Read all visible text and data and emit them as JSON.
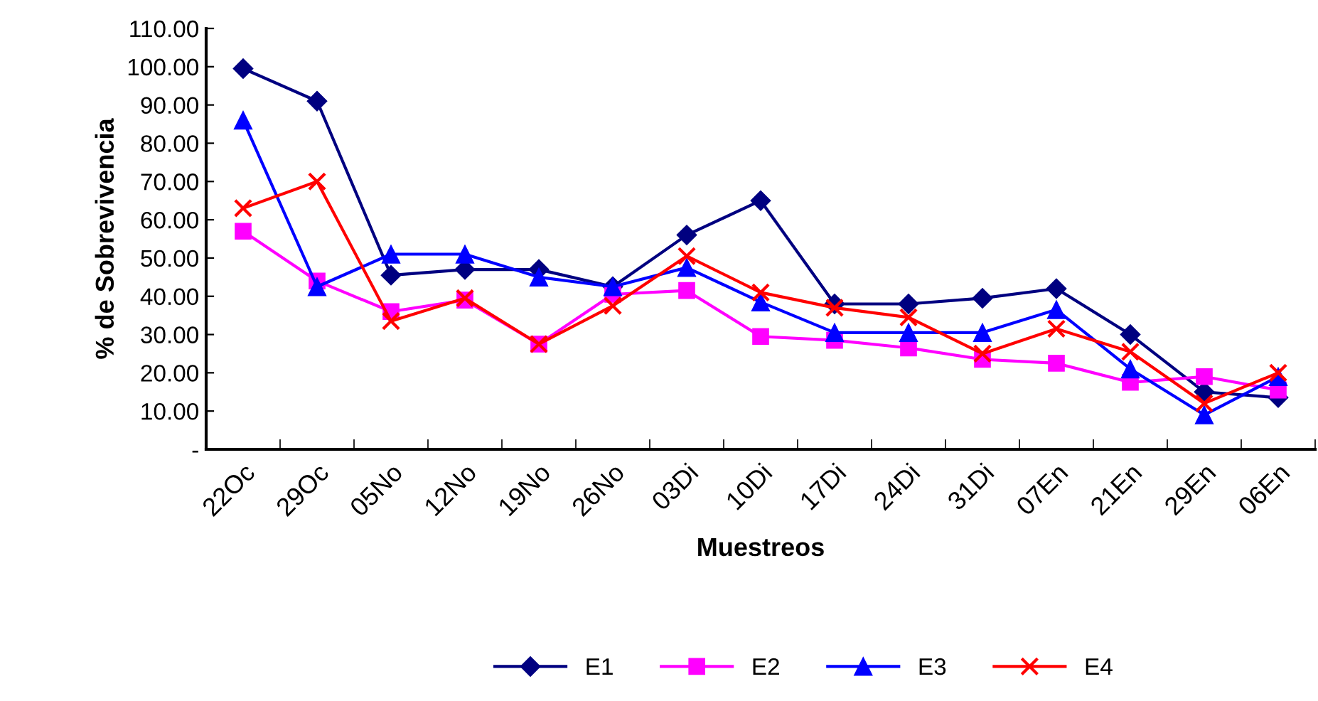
{
  "chart_data": {
    "type": "line",
    "xlabel": "Muestreos",
    "ylabel": "% de Sobrevivencia",
    "categories": [
      "22Oc",
      "29Oc",
      "05No",
      "12No",
      "19No",
      "26No",
      "03Di",
      "10Di",
      "17Di",
      "24Di",
      "31Di",
      "07En",
      "21En",
      "29En",
      "06En"
    ],
    "series": [
      {
        "name": "E1",
        "color": "#000080",
        "marker": "diamond",
        "values": [
          99.5,
          91,
          45.5,
          47,
          47,
          42.5,
          56,
          65,
          38,
          38,
          39.5,
          42,
          30,
          15,
          13.5
        ]
      },
      {
        "name": "E2",
        "color": "#ff00ff",
        "marker": "square",
        "values": [
          57,
          44,
          36,
          39,
          27.5,
          40.5,
          41.5,
          29.5,
          28.5,
          26.5,
          23.5,
          22.5,
          17.5,
          19,
          15.5
        ]
      },
      {
        "name": "E3",
        "color": "#0000ff",
        "marker": "triangle",
        "values": [
          86,
          42.5,
          51,
          51,
          45,
          42.5,
          47.5,
          38.5,
          30.5,
          30.5,
          30.5,
          36.5,
          21,
          9,
          19
        ]
      },
      {
        "name": "E4",
        "color": "#ff0000",
        "marker": "cross",
        "values": [
          63,
          70,
          33.5,
          39.5,
          27.5,
          37.5,
          50.5,
          41,
          37,
          34.5,
          25,
          31.5,
          25.5,
          12,
          20
        ]
      }
    ],
    "ylim": [
      0,
      110
    ],
    "yticks": [
      {
        "value": 0,
        "label": "-"
      },
      {
        "value": 10,
        "label": "10.00"
      },
      {
        "value": 20,
        "label": "20.00"
      },
      {
        "value": 30,
        "label": "30.00"
      },
      {
        "value": 40,
        "label": "40.00"
      },
      {
        "value": 50,
        "label": "50.00"
      },
      {
        "value": 60,
        "label": "60.00"
      },
      {
        "value": 70,
        "label": "70.00"
      },
      {
        "value": 80,
        "label": "80.00"
      },
      {
        "value": 90,
        "label": "90.00"
      },
      {
        "value": 100,
        "label": "100.00"
      },
      {
        "value": 110,
        "label": "110.00"
      }
    ],
    "grid": false,
    "legend": "bottom"
  }
}
